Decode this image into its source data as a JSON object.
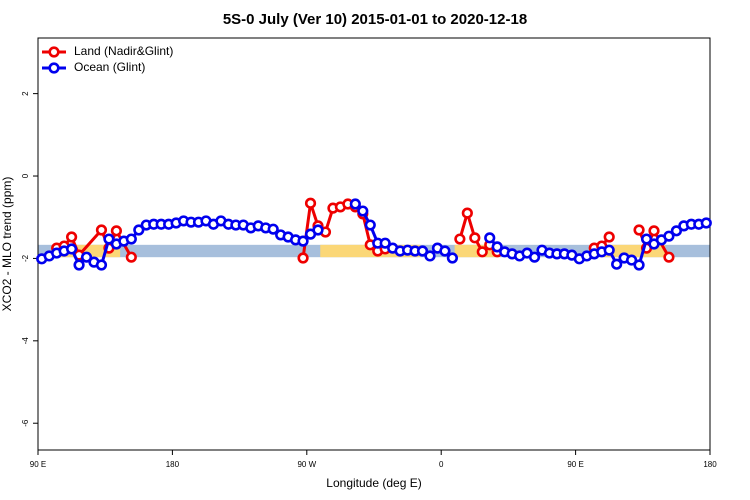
{
  "chart_data": {
    "type": "line",
    "title": "5S-0 July (Ver 10)   2015-01-01 to 2020-12-18",
    "x_label": "Longitude (deg E)",
    "y_label": "XCO2 - MLO trend (ppm)",
    "xlim": [
      90,
      540
    ],
    "ylim": [
      -6.65,
      3.35
    ],
    "xticks": [
      {
        "value": 90,
        "label": "90 E"
      },
      180,
      {
        "value": 270,
        "label": "90 W"
      },
      {
        "value": 360,
        "label": "0"
      },
      {
        "value": 450,
        "label": "90 E"
      },
      {
        "value": 540,
        "label": "180"
      }
    ],
    "yticks": [
      -6,
      -4,
      -2,
      0,
      2
    ],
    "legend": "top-left",
    "bands": [
      {
        "color": "#a7bfdc",
        "ymin": -1.97,
        "ymax": -1.67
      },
      {
        "color": "#fbd777",
        "xmin": 101,
        "xmax": 145,
        "ymin": -1.97,
        "ymax": -1.67
      },
      {
        "color": "#fbd777",
        "xmin": 279,
        "xmax": 346,
        "ymin": -1.97,
        "ymax": -1.67
      },
      {
        "color": "#fbd777",
        "xmin": 369,
        "xmax": 399,
        "ymin": -1.97,
        "ymax": -1.67
      },
      {
        "color": "#fbd777",
        "xmin": 459,
        "xmax": 510,
        "ymin": -1.97,
        "ymax": -1.67
      }
    ],
    "series": [
      {
        "name": "Land (Nadir&Glint)",
        "color": "#ee0000",
        "x": [
          102.5,
          107.5,
          112.5,
          117.5,
          132.5,
          137.5,
          142.5,
          152.5,
          157.5,
          267.5,
          272.5,
          277.5,
          282.5,
          287.5,
          292.5,
          297.5,
          302.5,
          307.5,
          312.5,
          317.5,
          322.5,
          327.5,
          372.5,
          377.5,
          382.5,
          387.5,
          392.5,
          397.5,
          402.5,
          462.5,
          467.5,
          472.5,
          477.5,
          492.5,
          497.5,
          502.5,
          512.5
        ],
        "values": [
          -1.75,
          -1.7,
          -1.48,
          -1.92,
          -1.31,
          -1.75,
          -1.33,
          -1.97,
          null,
          -1.99,
          -0.66,
          -1.21,
          -1.36,
          -0.78,
          -0.75,
          -0.68,
          -0.75,
          -0.92,
          -1.67,
          -1.82,
          -1.77,
          null,
          -1.53,
          -0.9,
          -1.5,
          -1.84,
          -1.67,
          -1.84,
          null,
          -1.75,
          -1.7,
          -1.48,
          null,
          -1.31,
          -1.75,
          -1.33,
          -1.97
        ]
      },
      {
        "name": "Ocean (Glint)",
        "color": "#0000ee",
        "x": [
          92.5,
          97.5,
          102.5,
          107.5,
          112.5,
          117.5,
          122.5,
          127.5,
          132.5,
          137.5,
          142.5,
          147.5,
          152.5,
          157.5,
          162.5,
          167.5,
          172.5,
          177.5,
          182.5,
          187.5,
          192.5,
          197.5,
          202.5,
          207.5,
          212.5,
          217.5,
          222.5,
          227.5,
          232.5,
          237.5,
          242.5,
          247.5,
          252.5,
          257.5,
          262.5,
          267.5,
          272.5,
          277.5,
          282.5,
          287.5,
          292.5,
          297.5,
          302.5,
          307.5,
          312.5,
          317.5,
          322.5,
          327.5,
          332.5,
          337.5,
          342.5,
          347.5,
          352.5,
          357.5,
          362.5,
          367.5,
          372.5,
          377.5,
          382.5,
          387.5,
          392.5,
          397.5,
          402.5,
          407.5,
          412.5,
          417.5,
          422.5,
          427.5,
          432.5,
          437.5,
          442.5,
          447.5,
          452.5,
          457.5,
          462.5,
          467.5,
          472.5,
          477.5,
          482.5,
          487.5,
          492.5,
          497.5,
          502.5,
          507.5,
          512.5,
          517.5,
          522.5,
          527.5,
          532.5,
          537.5
        ],
        "values": [
          -2.01,
          -1.94,
          -1.87,
          -1.82,
          -1.77,
          -2.16,
          -1.97,
          -2.09,
          -2.16,
          -1.53,
          -1.65,
          -1.58,
          -1.53,
          -1.31,
          -1.19,
          -1.17,
          -1.17,
          -1.17,
          -1.14,
          -1.09,
          -1.12,
          -1.12,
          -1.09,
          -1.17,
          -1.09,
          -1.17,
          -1.19,
          -1.19,
          -1.26,
          -1.21,
          -1.26,
          -1.29,
          -1.43,
          -1.48,
          -1.55,
          -1.58,
          -1.41,
          -1.31,
          null,
          null,
          null,
          null,
          -0.68,
          -0.85,
          -1.19,
          -1.63,
          -1.63,
          -1.75,
          -1.82,
          -1.8,
          -1.82,
          -1.82,
          -1.94,
          -1.75,
          -1.82,
          -1.99,
          null,
          null,
          null,
          null,
          -1.5,
          -1.72,
          -1.84,
          -1.89,
          -1.94,
          -1.87,
          -1.97,
          -1.8,
          -1.87,
          -1.89,
          -1.89,
          -1.92,
          -2.01,
          -1.94,
          -1.89,
          -1.84,
          -1.8,
          -2.14,
          -1.99,
          -2.04,
          -2.16,
          -1.53,
          -1.65,
          -1.55,
          -1.46,
          -1.33,
          -1.21,
          -1.17,
          -1.17,
          -1.14
        ]
      }
    ]
  }
}
